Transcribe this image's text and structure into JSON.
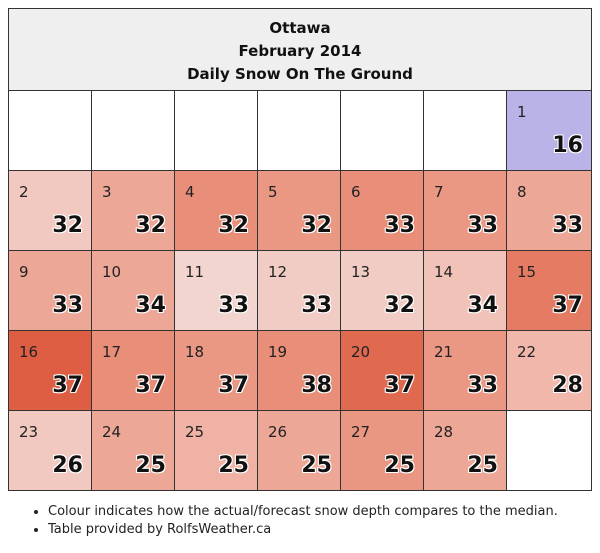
{
  "header": {
    "city": "Ottawa",
    "month": "February 2014",
    "title": "Daily Snow On The Ground"
  },
  "calendar": {
    "leading_blank_days": 6,
    "days": [
      {
        "day": "1",
        "value": "16",
        "color": "#b9b3e8"
      },
      {
        "day": "2",
        "value": "32",
        "color": "#f1c9c0"
      },
      {
        "day": "3",
        "value": "32",
        "color": "#eca797"
      },
      {
        "day": "4",
        "value": "32",
        "color": "#e98e78"
      },
      {
        "day": "5",
        "value": "32",
        "color": "#ea9783"
      },
      {
        "day": "6",
        "value": "33",
        "color": "#e98e78"
      },
      {
        "day": "7",
        "value": "33",
        "color": "#ea9783"
      },
      {
        "day": "8",
        "value": "33",
        "color": "#eca797"
      },
      {
        "day": "9",
        "value": "33",
        "color": "#eca797"
      },
      {
        "day": "10",
        "value": "34",
        "color": "#eca797"
      },
      {
        "day": "11",
        "value": "33",
        "color": "#f3d5cf"
      },
      {
        "day": "12",
        "value": "33",
        "color": "#f1ccc4"
      },
      {
        "day": "13",
        "value": "32",
        "color": "#f1ccc4"
      },
      {
        "day": "14",
        "value": "34",
        "color": "#f1c3b8"
      },
      {
        "day": "15",
        "value": "37",
        "color": "#e57b62"
      },
      {
        "day": "16",
        "value": "37",
        "color": "#dd5e42"
      },
      {
        "day": "17",
        "value": "37",
        "color": "#e98e78"
      },
      {
        "day": "18",
        "value": "37",
        "color": "#ea9783"
      },
      {
        "day": "19",
        "value": "38",
        "color": "#e98e78"
      },
      {
        "day": "20",
        "value": "37",
        "color": "#e06a50"
      },
      {
        "day": "21",
        "value": "33",
        "color": "#ea9783"
      },
      {
        "day": "22",
        "value": "28",
        "color": "#f0b7aa"
      },
      {
        "day": "23",
        "value": "26",
        "color": "#f1c9c0"
      },
      {
        "day": "24",
        "value": "25",
        "color": "#eda797"
      },
      {
        "day": "25",
        "value": "25",
        "color": "#f0b2a4"
      },
      {
        "day": "26",
        "value": "25",
        "color": "#eda797"
      },
      {
        "day": "27",
        "value": "25",
        "color": "#e99783"
      },
      {
        "day": "28",
        "value": "25",
        "color": "#eda797"
      }
    ]
  },
  "notes": [
    "Colour indicates how the actual/forecast snow depth compares to the median.",
    "Table provided by RolfsWeather.ca"
  ]
}
